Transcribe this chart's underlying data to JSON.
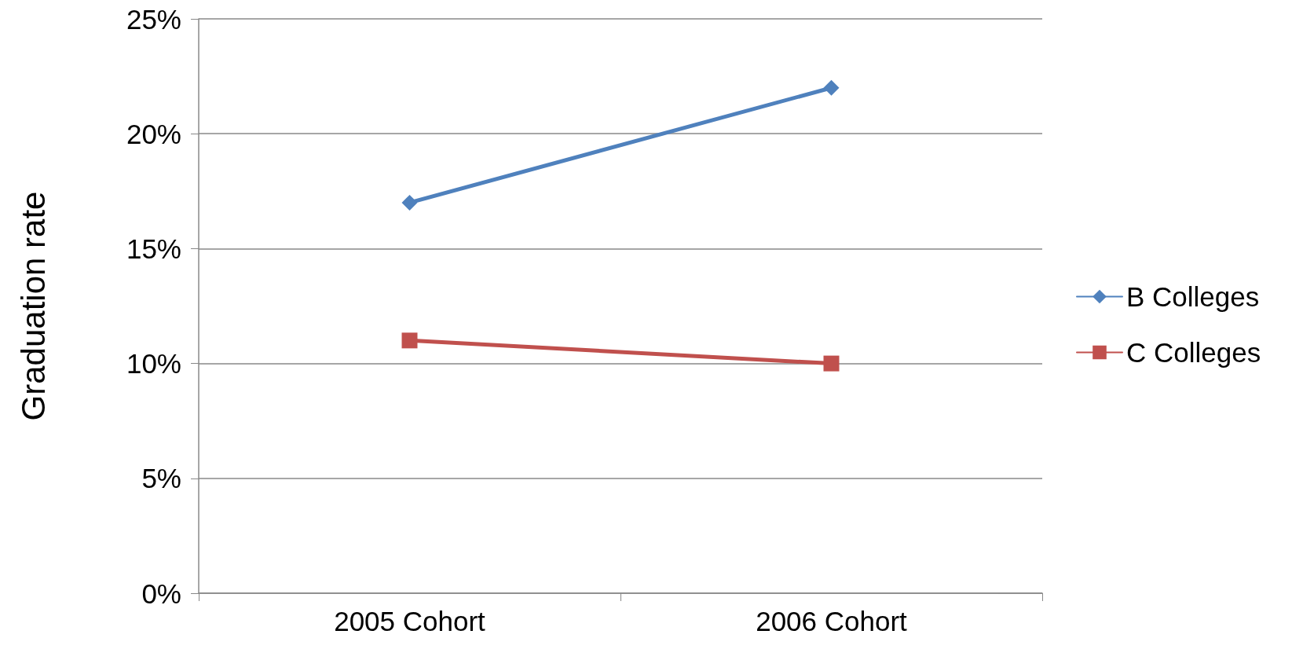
{
  "chart_data": {
    "type": "line",
    "ylabel": "Graduation rate",
    "categories": [
      "2005 Cohort",
      "2006 Cohort"
    ],
    "series": [
      {
        "name": "B Colleges",
        "color": "#4f81bd",
        "marker": "diamond",
        "values": [
          17,
          22
        ]
      },
      {
        "name": "C Colleges",
        "color": "#c0504d",
        "marker": "square",
        "values": [
          11,
          10
        ]
      }
    ],
    "ylim": [
      0,
      25
    ],
    "yticks": [
      {
        "value": 0,
        "label": "0%"
      },
      {
        "value": 5,
        "label": "5%"
      },
      {
        "value": 10,
        "label": "10%"
      },
      {
        "value": 15,
        "label": "15%"
      },
      {
        "value": 20,
        "label": "20%"
      },
      {
        "value": 25,
        "label": "25%"
      }
    ],
    "grid": "y",
    "legend": "right",
    "line_style": "solid"
  }
}
